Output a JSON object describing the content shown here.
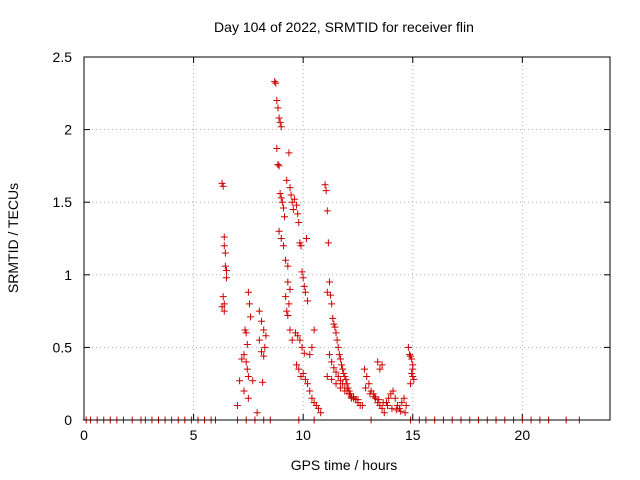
{
  "chart_data": {
    "type": "scatter",
    "title": "Day 104 of 2022, SRMTID for receiver flin",
    "xlabel": "GPS time / hours",
    "ylabel": "SRMTID / TECUs",
    "xlim": [
      0,
      24
    ],
    "ylim": [
      0,
      2.5
    ],
    "xticks": [
      0,
      5,
      10,
      15,
      20
    ],
    "xtick_labels": [
      "0",
      "5",
      "10",
      "15",
      "20"
    ],
    "yticks": [
      0,
      0.5,
      1,
      1.5,
      2,
      2.5
    ],
    "ytick_labels": [
      "0",
      "0.5",
      "1",
      "1.5",
      "2",
      "2.5"
    ],
    "grid": true,
    "marker": "+",
    "series": [
      {
        "name": "SRMTID",
        "color": "#cc0000",
        "x": [
          0.1,
          0.3,
          0.6,
          0.9,
          1.2,
          1.5,
          1.8,
          2.2,
          2.6,
          2.8,
          3.1,
          3.4,
          3.7,
          4.0,
          4.3,
          4.6,
          4.9,
          5.2,
          5.5,
          5.8,
          6.0,
          7.0,
          7.4,
          7.8,
          8.2,
          8.5,
          9.8,
          10.5,
          13.1,
          14.9,
          15.3,
          15.6,
          16.0,
          16.4,
          16.8,
          17.2,
          17.6,
          18.0,
          18.4,
          18.8,
          19.2,
          19.6,
          20.0,
          20.4,
          20.8,
          21.2,
          22.0,
          22.6,
          6.3,
          6.35,
          6.4,
          6.4,
          6.45,
          6.45,
          6.5,
          6.5,
          6.35,
          6.4,
          6.3,
          6.4,
          7.0,
          7.1,
          7.2,
          7.3,
          7.35,
          7.4,
          7.45,
          7.5,
          7.5,
          7.55,
          7.6,
          7.7,
          7.4,
          7.45,
          7.3,
          7.5,
          7.9,
          8.0,
          8.1,
          8.2,
          8.3,
          8.0,
          8.1,
          8.2,
          8.15,
          8.25,
          8.7,
          8.75,
          8.8,
          8.85,
          8.9,
          8.95,
          9.0,
          8.8,
          8.85,
          8.9,
          8.95,
          9.0,
          9.05,
          9.1,
          9.15,
          8.9,
          9.0,
          9.1,
          9.2,
          9.3,
          9.25,
          9.35,
          9.4,
          9.45,
          9.5,
          9.55,
          9.3,
          9.4,
          9.2,
          9.35,
          9.25,
          9.3,
          9.4,
          9.5,
          9.6,
          9.7,
          9.75,
          9.8,
          9.85,
          9.9,
          9.95,
          10.0,
          10.05,
          10.1,
          10.15,
          10.2,
          9.65,
          9.75,
          9.85,
          9.95,
          10.05,
          9.7,
          9.8,
          9.9,
          10.0,
          10.1,
          10.2,
          10.3,
          10.4,
          10.5,
          10.6,
          10.7,
          10.8,
          10.3,
          10.4,
          10.5,
          11.0,
          11.05,
          11.1,
          11.15,
          11.2,
          11.1,
          11.25,
          11.3,
          11.35,
          11.4,
          11.45,
          11.5,
          11.55,
          11.6,
          11.65,
          11.7,
          11.75,
          11.8,
          11.85,
          11.9,
          11.95,
          12.0,
          12.05,
          12.1,
          12.15,
          12.2,
          11.2,
          11.3,
          11.4,
          11.5,
          11.6,
          11.7,
          11.8,
          11.9,
          12.0,
          12.1,
          12.2,
          12.3,
          12.4,
          12.5,
          12.6,
          12.7,
          11.1,
          11.3,
          11.5,
          11.7,
          11.9,
          12.1,
          12.3,
          12.5,
          12.8,
          12.9,
          13.0,
          13.1,
          13.2,
          13.3,
          13.4,
          13.5,
          13.6,
          13.7,
          13.8,
          13.9,
          14.0,
          14.1,
          14.2,
          14.3,
          14.4,
          14.5,
          14.6,
          14.7,
          12.85,
          13.05,
          13.25,
          13.45,
          13.65,
          13.85,
          14.05,
          14.25,
          14.45,
          14.65,
          13.4,
          13.5,
          13.6,
          14.8,
          14.85,
          14.9,
          14.95,
          15.0,
          15.05,
          14.9,
          15.0,
          14.95,
          15.0
        ],
        "y": [
          0,
          0,
          0,
          0,
          0,
          0,
          0,
          0,
          0,
          0,
          0,
          0,
          0,
          0,
          0,
          0,
          0,
          0,
          0,
          0,
          0,
          0,
          0,
          0,
          0,
          0,
          0,
          0,
          0,
          0,
          0,
          0,
          0,
          0,
          0,
          0,
          0,
          0,
          0,
          0,
          0,
          0,
          0,
          0,
          0,
          0,
          0,
          0,
          1.63,
          1.61,
          1.26,
          1.2,
          1.15,
          1.06,
          1.03,
          0.98,
          0.85,
          0.8,
          0.78,
          0.75,
          0.1,
          0.27,
          0.42,
          0.45,
          0.62,
          0.6,
          0.52,
          0.3,
          0.88,
          0.8,
          0.71,
          0.27,
          0.4,
          0.35,
          0.2,
          0.15,
          0.05,
          0.75,
          0.68,
          0.62,
          0.58,
          0.55,
          0.47,
          0.44,
          0.26,
          0.5,
          2.33,
          2.32,
          2.2,
          2.15,
          2.08,
          2.05,
          2.02,
          1.87,
          1.76,
          1.75,
          1.56,
          1.53,
          1.5,
          1.46,
          1.4,
          1.3,
          1.25,
          1.2,
          1.1,
          1.06,
          1.65,
          1.84,
          1.6,
          1.55,
          1.5,
          1.45,
          0.95,
          0.9,
          0.85,
          0.8,
          0.75,
          0.72,
          0.62,
          0.55,
          1.52,
          1.48,
          1.42,
          1.36,
          1.22,
          1.2,
          1.02,
          0.98,
          0.92,
          0.88,
          1.25,
          0.82,
          0.6,
          0.58,
          0.55,
          0.5,
          0.46,
          0.38,
          0.35,
          0.3,
          0.32,
          0.28,
          0.25,
          0.2,
          0.15,
          0.12,
          0.1,
          0.08,
          0.05,
          0.45,
          0.5,
          0.62,
          1.62,
          1.58,
          1.44,
          1.22,
          0.95,
          0.88,
          0.86,
          0.8,
          0.7,
          0.66,
          0.64,
          0.6,
          0.55,
          0.5,
          0.45,
          0.42,
          0.38,
          0.35,
          0.32,
          0.3,
          0.28,
          0.25,
          0.22,
          0.2,
          0.18,
          0.15,
          0.45,
          0.4,
          0.36,
          0.33,
          0.3,
          0.27,
          0.25,
          0.22,
          0.2,
          0.18,
          0.16,
          0.15,
          0.14,
          0.12,
          0.1,
          0.1,
          0.3,
          0.28,
          0.25,
          0.22,
          0.2,
          0.18,
          0.16,
          0.14,
          0.35,
          0.3,
          0.25,
          0.2,
          0.18,
          0.15,
          0.12,
          0.1,
          0.08,
          0.05,
          0.12,
          0.15,
          0.18,
          0.2,
          0.15,
          0.1,
          0.08,
          0.12,
          0.15,
          0.1,
          0.22,
          0.18,
          0.16,
          0.14,
          0.12,
          0.1,
          0.08,
          0.07,
          0.06,
          0.05,
          0.4,
          0.35,
          0.38,
          0.5,
          0.45,
          0.44,
          0.32,
          0.3,
          0.28,
          0.25,
          0.35,
          0.42,
          0.38
        ]
      }
    ]
  }
}
